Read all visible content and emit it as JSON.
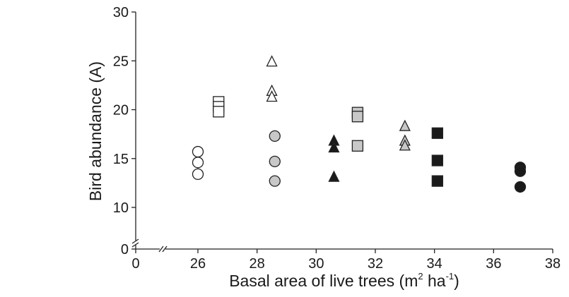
{
  "chart_data": {
    "type": "scatter",
    "xlabel": "Basal area of live trees (m² ha⁻¹)",
    "xlabel_parts": {
      "base": "Basal area of live trees (m",
      "sup1": "2",
      "mid": " ha",
      "sup2": "-1",
      "end": ")"
    },
    "ylabel": "Bird abundance (A)",
    "x_ticks": [
      "0",
      "26",
      "28",
      "30",
      "32",
      "34",
      "36",
      "38"
    ],
    "y_ticks": [
      "0",
      "10",
      "15",
      "20",
      "25",
      "30"
    ],
    "xlim": [
      25,
      38
    ],
    "ylim": [
      10,
      30
    ],
    "axis_breaks": {
      "x": true,
      "y": true
    },
    "grid": false,
    "legend": "none",
    "colors": {
      "white": "#ffffff",
      "gray": "#c8c8c8",
      "black": "#1a1a1a",
      "edge": "#222222"
    },
    "series": [
      {
        "marker": "circle",
        "fill": "white",
        "x": [
          26.0,
          26.0,
          26.0
        ],
        "y": [
          15.7,
          14.6,
          13.4
        ]
      },
      {
        "marker": "square",
        "fill": "white",
        "x": [
          26.7,
          26.7,
          26.7
        ],
        "y": [
          20.8,
          20.3,
          19.8
        ]
      },
      {
        "marker": "triangle",
        "fill": "white",
        "x": [
          28.5,
          28.5,
          28.5
        ],
        "y": [
          24.9,
          21.9,
          21.3
        ]
      },
      {
        "marker": "circle",
        "fill": "gray",
        "x": [
          28.6,
          28.6,
          28.6
        ],
        "y": [
          17.3,
          14.7,
          12.7
        ]
      },
      {
        "marker": "triangle",
        "fill": "black",
        "x": [
          30.6,
          30.6,
          30.6
        ],
        "y": [
          16.8,
          16.1,
          13.1
        ]
      },
      {
        "marker": "square",
        "fill": "gray",
        "x": [
          31.4,
          31.4,
          31.4
        ],
        "y": [
          19.7,
          19.3,
          16.3
        ]
      },
      {
        "marker": "triangle",
        "fill": "gray",
        "x": [
          33.0,
          33.0,
          33.0
        ],
        "y": [
          18.3,
          16.8,
          16.3
        ]
      },
      {
        "marker": "square",
        "fill": "black",
        "x": [
          34.1,
          34.1,
          34.1
        ],
        "y": [
          17.6,
          14.8,
          12.7
        ]
      },
      {
        "marker": "circle",
        "fill": "black",
        "x": [
          36.9,
          36.9,
          36.9
        ],
        "y": [
          14.1,
          13.7,
          12.1
        ]
      }
    ]
  }
}
